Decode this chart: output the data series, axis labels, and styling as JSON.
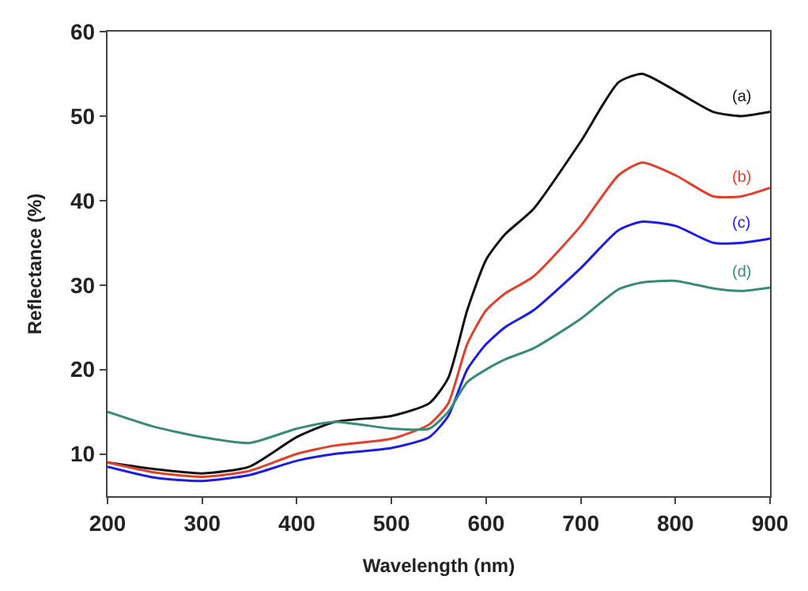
{
  "chart_data": {
    "type": "line",
    "xlabel": "Wavelength (nm)",
    "ylabel": "Reflectance (%)",
    "xlim": [
      200,
      900
    ],
    "xticks": [
      200,
      300,
      400,
      500,
      600,
      700,
      800,
      900
    ],
    "ylim": [
      5,
      60
    ],
    "yticks": [
      10,
      20,
      30,
      40,
      50,
      60
    ],
    "legend": false,
    "marker": "none",
    "line_style": "solid",
    "x": [
      200,
      250,
      300,
      350,
      400,
      440,
      500,
      540,
      560,
      580,
      600,
      620,
      650,
      700,
      740,
      765,
      800,
      840,
      870,
      900
    ],
    "series": [
      {
        "name": "(a)",
        "color": "#111111",
        "values": [
          9,
          8.2,
          7.7,
          8.5,
          12,
          13.8,
          14.5,
          16,
          19,
          27,
          33,
          36,
          39,
          47,
          54,
          55,
          53,
          50.5,
          50,
          50.5
        ]
      },
      {
        "name": "(b)",
        "color": "#e0402c",
        "values": [
          9,
          7.8,
          7.3,
          8,
          10,
          11,
          11.8,
          13.5,
          16,
          23,
          27,
          29,
          31,
          37,
          43,
          44.5,
          43,
          40.5,
          40.5,
          41.5
        ]
      },
      {
        "name": "(c)",
        "color": "#1c1ce6",
        "values": [
          8.5,
          7.2,
          6.8,
          7.5,
          9.2,
          10,
          10.7,
          12,
          14.5,
          20,
          23,
          25,
          27,
          32,
          36.5,
          37.5,
          37,
          35,
          35,
          35.5
        ]
      },
      {
        "name": "(d)",
        "color": "#3a8a7a",
        "values": [
          15,
          13.2,
          12,
          11.3,
          13,
          13.8,
          13,
          13,
          15,
          18.5,
          20,
          21.2,
          22.5,
          26,
          29.5,
          30.3,
          30.5,
          29.6,
          29.3,
          29.7
        ]
      }
    ]
  }
}
